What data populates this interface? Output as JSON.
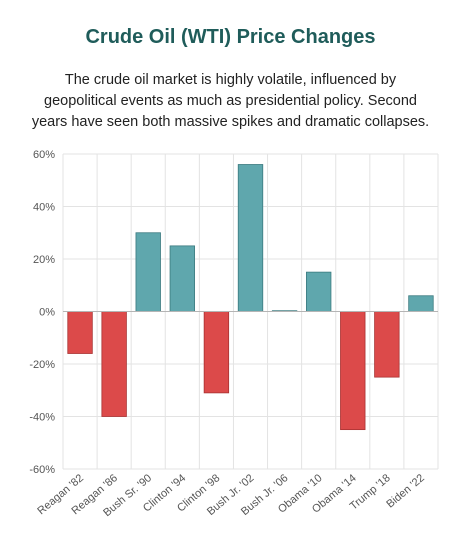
{
  "title": "Crude Oil (WTI) Price Changes",
  "subtitle": "The crude oil market is highly volatile, influenced by geopolitical events as much as presidential policy. Second years have seen both massive spikes and dramatic collapses.",
  "colors": {
    "positive": "#5fa7ad",
    "negative": "#dc4a4a",
    "grid": "#e3e3e3",
    "title": "#1f5c5a"
  },
  "chart_data": {
    "type": "bar",
    "categories": [
      "Reagan '82",
      "Reagan '86",
      "Bush Sr. '90",
      "Clinton '94",
      "Clinton '98",
      "Bush Jr. '02",
      "Bush Jr. '06",
      "Obama '10",
      "Obama '14",
      "Trump '18",
      "Biden '22"
    ],
    "values": [
      -16,
      -40,
      30,
      25,
      -31,
      56,
      0,
      15,
      -45,
      -25,
      6
    ],
    "y_ticks": [
      "60%",
      "40%",
      "20%",
      "0%",
      "-20%",
      "-40%",
      "-60%"
    ],
    "ylim": [
      -60,
      60
    ],
    "grid": true,
    "legend": "none"
  }
}
